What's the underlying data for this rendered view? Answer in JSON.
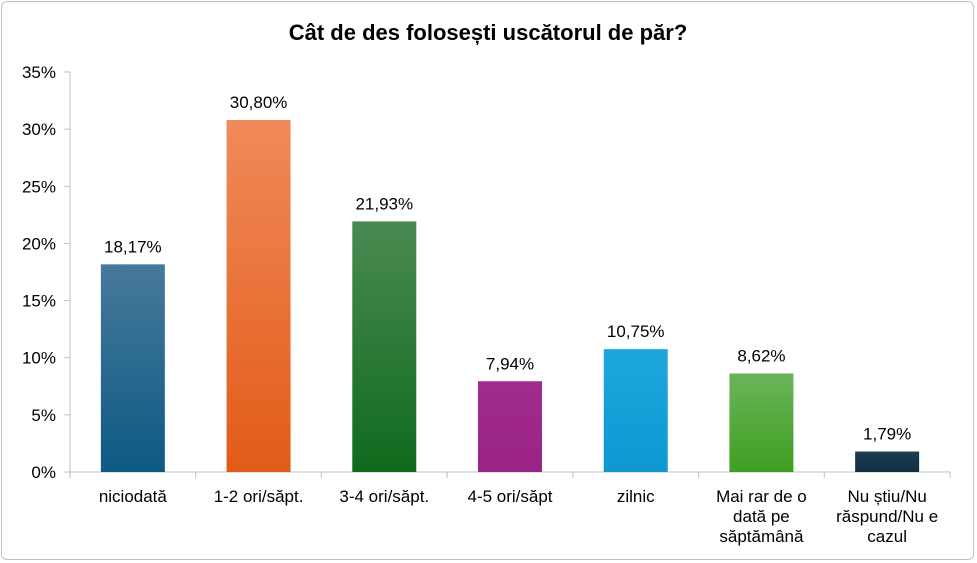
{
  "chart_data": {
    "type": "bar",
    "title": "Cât de des folosești uscătorul de păr?",
    "xlabel": "",
    "ylabel": "",
    "ylim": [
      0,
      35
    ],
    "yticks": [
      "0%",
      "5%",
      "10%",
      "15%",
      "20%",
      "25%",
      "30%",
      "35%"
    ],
    "grid": false,
    "legend": "none",
    "categories": [
      [
        "niciodată"
      ],
      [
        "1-2 ori/săpt."
      ],
      [
        "3-4 ori/săpt."
      ],
      [
        "4-5 ori/săpt"
      ],
      [
        "zilnic"
      ],
      [
        "Mai rar de o",
        "dată pe",
        "săptămână"
      ],
      [
        "Nu știu/Nu",
        "răspund/Nu e",
        "cazul"
      ]
    ],
    "values": [
      18.17,
      30.8,
      21.93,
      7.94,
      10.75,
      8.62,
      1.79
    ],
    "data_labels": [
      "18,17%",
      "30,80%",
      "21,93%",
      "7,94%",
      "10,75%",
      "8,62%",
      "1,79%"
    ],
    "colors": [
      [
        "#47799b",
        "#0d5a83"
      ],
      [
        "#f08a5a",
        "#e25b18"
      ],
      [
        "#4a8a52",
        "#0f6a1d"
      ],
      [
        "#a02c8e",
        "#9a2486"
      ],
      [
        "#1ea7dd",
        "#0f97d0"
      ],
      [
        "#6ab45a",
        "#3f9e22"
      ],
      [
        "#1c3d55",
        "#112e42"
      ]
    ]
  }
}
